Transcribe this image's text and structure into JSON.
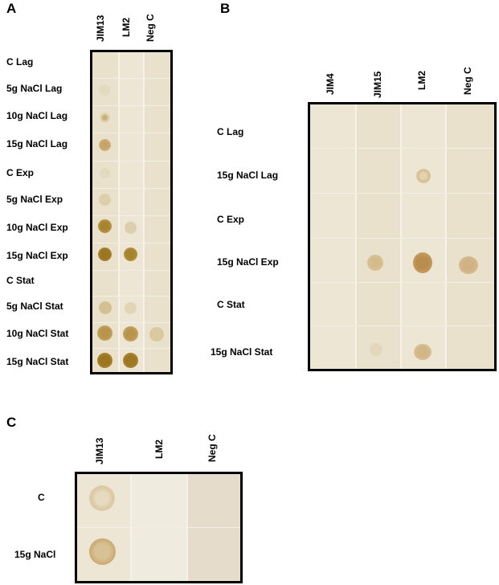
{
  "panel_a": {
    "letter": "A",
    "columns": [
      "JIM13",
      "LM2",
      "Neg C"
    ],
    "rows": [
      "C Lag",
      "5g NaCl Lag",
      "10g NaCl Lag",
      "15g NaCl Lag",
      "C Exp",
      "5g NaCl Exp",
      "10g NaCl Exp",
      "15g NaCl Exp",
      "C Stat",
      "5g NaCl Stat",
      "10g NaCl Stat",
      "15g NaCl Stat"
    ]
  },
  "panel_b": {
    "letter": "B",
    "columns": [
      "JIM4",
      "JIM15",
      "LM2",
      "Neg C"
    ],
    "rows": [
      "C Lag",
      "15g NaCl Lag",
      "C Exp",
      "15g NaCl Exp",
      "C Stat",
      "15g NaCl Stat"
    ]
  },
  "panel_c": {
    "letter": "C",
    "columns": [
      "JIM13",
      "LM2",
      "Neg C"
    ],
    "rows": [
      "C",
      "15g NaCl"
    ]
  },
  "colors": {
    "membrane": "#efe9dc",
    "dot_strong": "#a8832e",
    "dot_faint": "#dccfae"
  }
}
